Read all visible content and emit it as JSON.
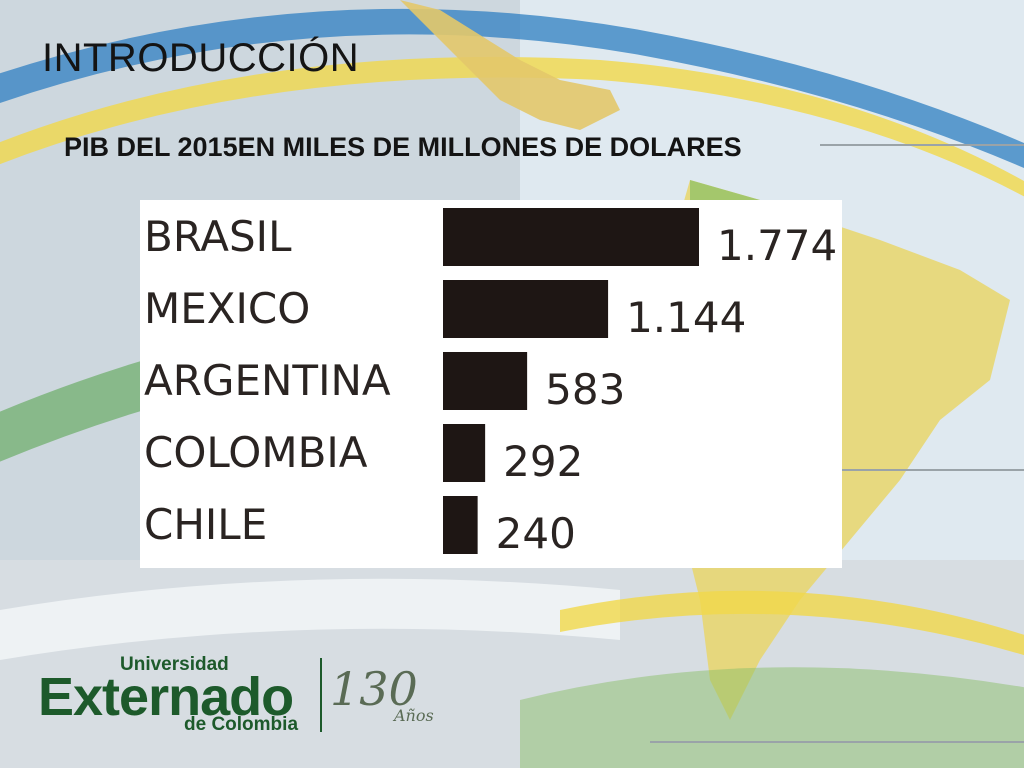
{
  "slide": {
    "title": "INTRODUCCIÓN",
    "subtitle": "PIB DEL 2015EN MILES DE MILLONES DE DOLARES"
  },
  "colors": {
    "bar": "#1e1614",
    "label_text": "#2a2422",
    "brand_green": "#1d5a2b",
    "map_yellow": "#e8d35a",
    "map_green": "#9cc46a",
    "band_blue": "#2f7fc1"
  },
  "chart_data": {
    "type": "bar",
    "orientation": "horizontal",
    "categories": [
      "BRASIL",
      "MEXICO",
      "ARGENTINA",
      "COLOMBIA",
      "CHILE"
    ],
    "values": [
      1774,
      1144,
      583,
      292,
      240
    ],
    "value_labels": [
      "1.774",
      "1.144",
      "583",
      "292",
      "240"
    ],
    "grid": false,
    "legend": "none"
  },
  "logo": {
    "line1": "Universidad",
    "name": "Externado",
    "line3": "de Colombia",
    "anniversary_number": "130",
    "anniversary_word": "Años"
  }
}
